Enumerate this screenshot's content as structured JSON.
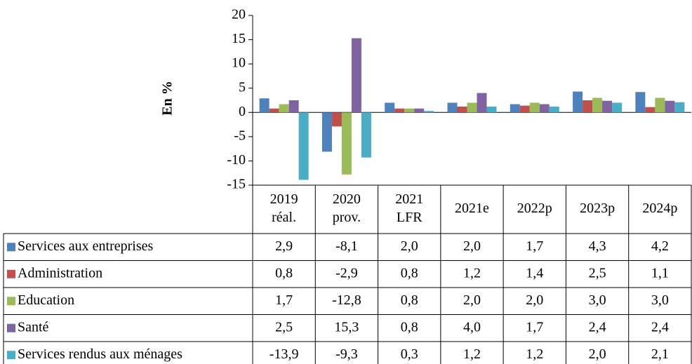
{
  "chart_data": {
    "type": "bar",
    "y_label": "En %",
    "categories": [
      [
        "2019",
        "réal."
      ],
      [
        "2020",
        "prov."
      ],
      [
        "2021",
        "LFR"
      ],
      [
        "2021e"
      ],
      [
        "2022p"
      ],
      [
        "2023p"
      ],
      [
        "2024p"
      ]
    ],
    "ylim": [
      -15,
      20
    ],
    "yticks": [
      -15,
      -10,
      -5,
      0,
      5,
      10,
      15,
      20
    ],
    "series": [
      {
        "name": "Services aux entreprises",
        "color": "#4f81bd",
        "values": [
          2.9,
          -8.1,
          2.0,
          2.0,
          1.7,
          4.3,
          4.2
        ],
        "value_labels": [
          "2,9",
          "-8,1",
          "2,0",
          "2,0",
          "1,7",
          "4,3",
          "4,2"
        ]
      },
      {
        "name": "Administration",
        "color": "#c0504d",
        "values": [
          0.8,
          -2.9,
          0.8,
          1.2,
          1.4,
          2.5,
          1.1
        ],
        "value_labels": [
          "0,8",
          "-2,9",
          "0,8",
          "1,2",
          "1,4",
          "2,5",
          "1,1"
        ]
      },
      {
        "name": "Education",
        "color": "#9bbb59",
        "values": [
          1.7,
          -12.8,
          0.8,
          2.0,
          2.0,
          3.0,
          3.0
        ],
        "value_labels": [
          "1,7",
          "-12,8",
          "0,8",
          "2,0",
          "2,0",
          "3,0",
          "3,0"
        ]
      },
      {
        "name": "Santé",
        "color": "#8064a2",
        "values": [
          2.5,
          15.3,
          0.8,
          4.0,
          1.7,
          2.4,
          2.4
        ],
        "value_labels": [
          "2,5",
          "15,3",
          "0,8",
          "4,0",
          "1,7",
          "2,4",
          "2,4"
        ]
      },
      {
        "name": "Services rendus aux ménages",
        "color": "#4bacc6",
        "values": [
          -13.9,
          -9.3,
          0.3,
          1.2,
          1.2,
          2.0,
          2.1
        ],
        "value_labels": [
          "-13,9",
          "-9,3",
          "0,3",
          "1,2",
          "1,2",
          "2,0",
          "2,1"
        ]
      }
    ]
  }
}
